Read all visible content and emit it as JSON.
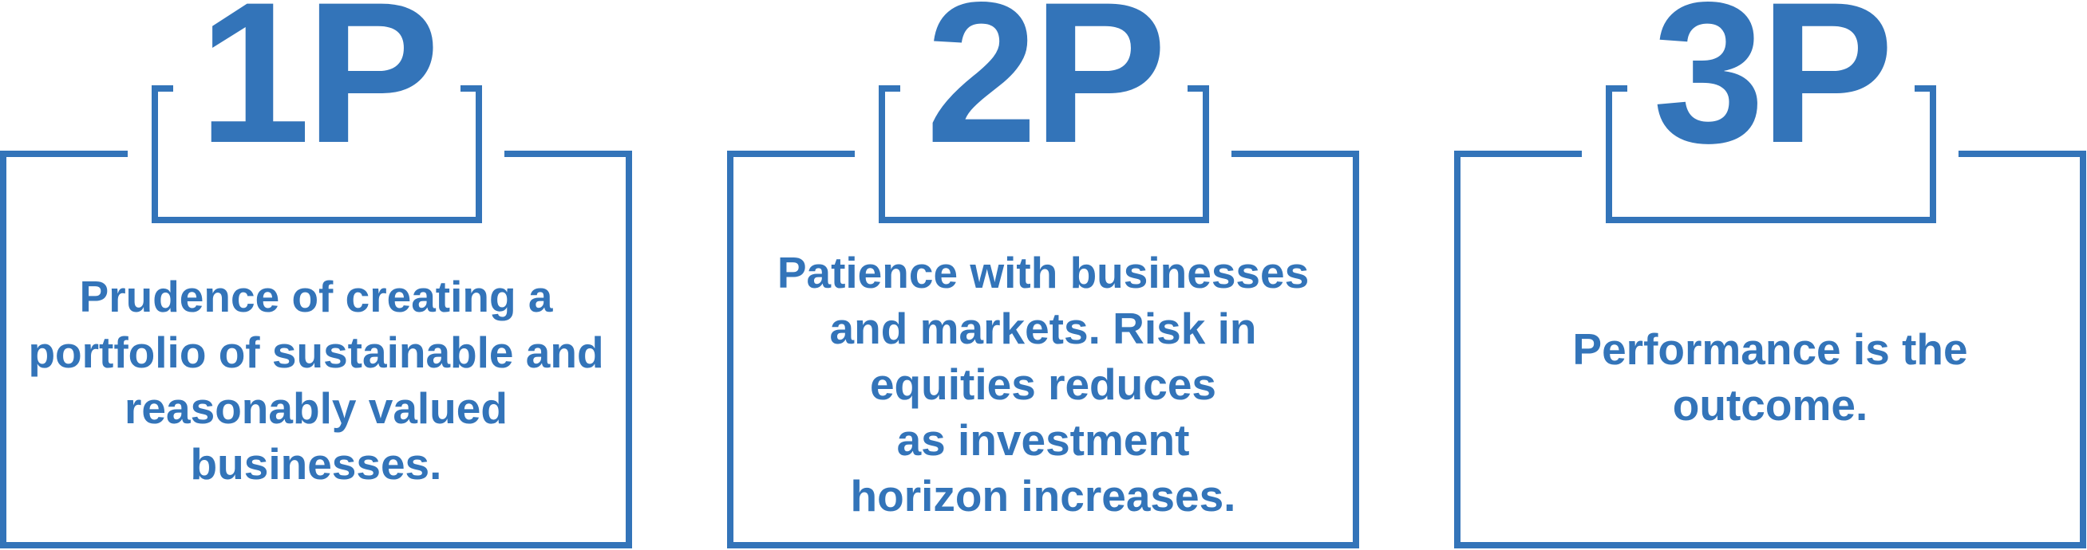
{
  "accent_color": "#3374b9",
  "panels": [
    {
      "label": "1P",
      "lines": [
        "Prudence of creating a",
        "portfolio of sustainable and",
        "reasonably valued",
        "businesses."
      ]
    },
    {
      "label": "2P",
      "lines": [
        "Patience with businesses",
        "and markets. Risk in",
        "equities reduces",
        "as investment",
        "horizon increases."
      ]
    },
    {
      "label": "3P",
      "lines": [
        "Performance is the",
        "outcome."
      ]
    }
  ]
}
